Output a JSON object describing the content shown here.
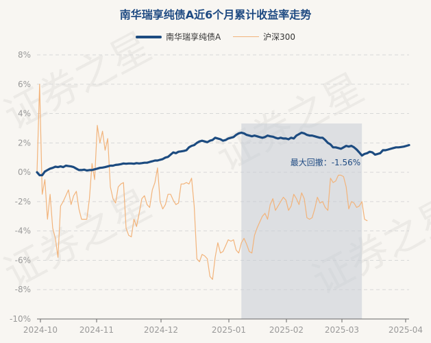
{
  "chart_data": {
    "type": "line",
    "title": "南华瑞享纯债A近6个月累计收益率走势",
    "ylim": [
      -10,
      8
    ],
    "y_ticks": [
      "8%",
      "6%",
      "4%",
      "2%",
      "0%",
      "-2%",
      "-4%",
      "-6%",
      "-8%",
      "-10%"
    ],
    "x_tick_labels": [
      "2024-10",
      "2024-11",
      "2024-12",
      "2025-01",
      "2025-02",
      "2025-03",
      "2025-04"
    ],
    "grid": "horizontal dashed",
    "legend_placement": "top-center",
    "series": [
      {
        "name": "南华瑞享纯债A",
        "color": "#1c4b80",
        "values": [
          0.0,
          -0.2,
          -0.2,
          0.05,
          0.15,
          0.25,
          0.3,
          0.38,
          0.35,
          0.4,
          0.35,
          0.45,
          0.42,
          0.4,
          0.35,
          0.25,
          0.15,
          0.15,
          0.18,
          0.12,
          0.15,
          0.15,
          0.2,
          0.25,
          0.3,
          0.32,
          0.35,
          0.4,
          0.45,
          0.45,
          0.5,
          0.52,
          0.55,
          0.6,
          0.58,
          0.6,
          0.6,
          0.58,
          0.62,
          0.6,
          0.62,
          0.65,
          0.65,
          0.7,
          0.75,
          0.8,
          0.8,
          0.85,
          0.9,
          1.0,
          1.05,
          1.2,
          1.35,
          1.3,
          1.4,
          1.42,
          1.45,
          1.5,
          1.7,
          1.8,
          1.85,
          2.0,
          2.1,
          2.15,
          2.1,
          2.05,
          2.15,
          2.2,
          2.35,
          2.3,
          2.25,
          2.15,
          2.2,
          2.3,
          2.35,
          2.4,
          2.55,
          2.65,
          2.7,
          2.65,
          2.55,
          2.5,
          2.45,
          2.5,
          2.45,
          2.4,
          2.35,
          2.4,
          2.5,
          2.45,
          2.42,
          2.35,
          2.3,
          2.35,
          2.3,
          2.3,
          2.25,
          2.35,
          2.3,
          2.5,
          2.6,
          2.7,
          2.65,
          2.55,
          2.5,
          2.5,
          2.45,
          2.4,
          2.35,
          2.35,
          2.2,
          2.0,
          1.9,
          1.7,
          1.7,
          1.65,
          1.6,
          1.7,
          1.8,
          1.75,
          1.8,
          1.7,
          1.55,
          1.35,
          1.14,
          1.25,
          1.3,
          1.4,
          1.35,
          1.2,
          1.25,
          1.3,
          1.5,
          1.5,
          1.55,
          1.6,
          1.65,
          1.7,
          1.7,
          1.72,
          1.75,
          1.8,
          1.85
        ]
      },
      {
        "name": "沪深300",
        "color": "#f2b37a",
        "values": [
          0.0,
          6.0,
          -1.5,
          -0.5,
          -3.2,
          -1.5,
          -3.8,
          -4.5,
          -5.8,
          -2.3,
          -2.0,
          -1.6,
          -1.2,
          -2.2,
          -1.6,
          -1.3,
          -2.5,
          -3.2,
          -3.2,
          -3.2,
          -1.8,
          0.6,
          -0.5,
          3.2,
          2.0,
          2.8,
          1.5,
          2.3,
          -1.0,
          -1.8,
          -2.1,
          -1.0,
          -0.8,
          -0.7,
          -3.8,
          -4.3,
          -4.4,
          -3.2,
          -3.7,
          -2.8,
          -1.8,
          -1.6,
          -2.2,
          -2.4,
          -1.2,
          -0.7,
          0.3,
          -2.0,
          -2.5,
          -2.2,
          -1.5,
          -1.5,
          -1.9,
          -2.2,
          -2.1,
          -0.8,
          -0.8,
          -0.7,
          -0.8,
          -0.4,
          -2.3,
          -5.9,
          -6.1,
          -5.6,
          -5.7,
          -5.9,
          -7.1,
          -7.3,
          -5.8,
          -4.8,
          -5.5,
          -5.4,
          -5.0,
          -4.6,
          -4.7,
          -4.6,
          -5.3,
          -5.5,
          -4.8,
          -4.5,
          -4.9,
          -5.4,
          -5.5,
          -4.3,
          -3.8,
          -3.4,
          -3.0,
          -2.8,
          -3.2,
          -2.2,
          -1.8,
          -2.6,
          -2.3,
          -2.0,
          -1.7,
          -1.9,
          -2.6,
          -2.3,
          -1.5,
          -1.8,
          -2.2,
          -1.4,
          -1.8,
          -3.1,
          -3.2,
          -3.1,
          -2.5,
          -1.7,
          -2.1,
          -2.0,
          -2.4,
          -2.6,
          -0.4,
          -0.7,
          -0.6,
          -0.2,
          -0.2,
          -0.3,
          -1.0,
          -2.5,
          -2.0,
          -2.1,
          -2.4,
          -2.3,
          -2.0,
          -3.2,
          -3.3
        ]
      }
    ],
    "shaded_region": {
      "label": "最大回撤：-1.56%"
    },
    "watermark": "证券之星"
  }
}
